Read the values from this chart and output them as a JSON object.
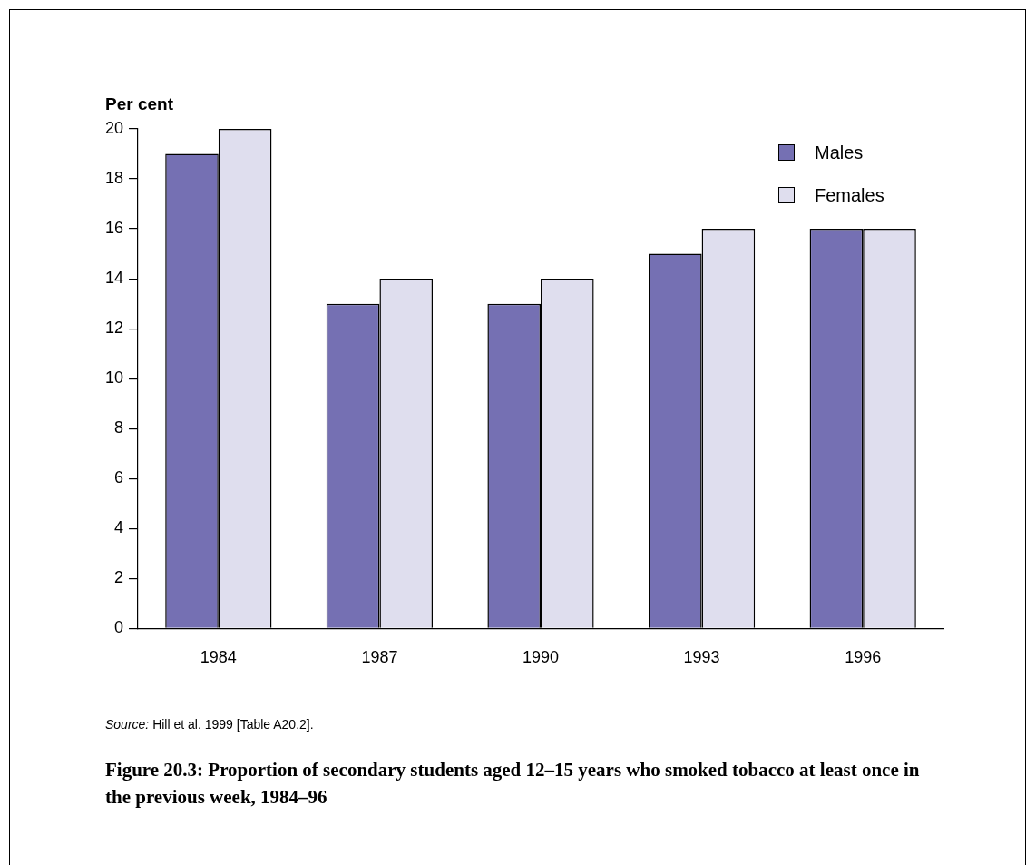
{
  "chart_data": {
    "type": "bar",
    "title": "Figure 20.3: Proportion of secondary students aged 12–15 years who smoked tobacco at least once in the previous week, 1984–96",
    "ylabel": "Per cent",
    "annotations": [
      "Source: Hill et al. 1999 [Table A20.2]."
    ],
    "categories": [
      "1984",
      "1987",
      "1990",
      "1993",
      "1996"
    ],
    "series": [
      {
        "name": "Males",
        "color": "#7570b3",
        "values": [
          19,
          13,
          13,
          15,
          16
        ]
      },
      {
        "name": "Females",
        "color": "#dfdeee",
        "values": [
          20,
          14,
          14,
          16,
          16
        ]
      }
    ],
    "ylim": [
      0,
      20
    ],
    "yticks": [
      0,
      2,
      4,
      6,
      8,
      10,
      12,
      14,
      16,
      18,
      20
    ],
    "legend": "top right"
  }
}
